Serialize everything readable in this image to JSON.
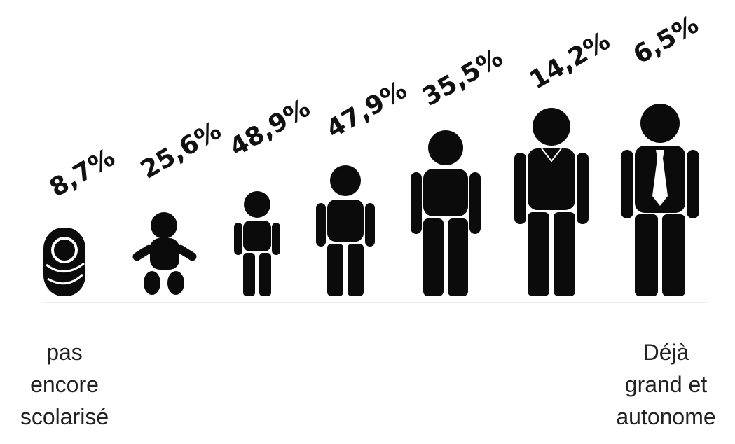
{
  "chart_data": {
    "type": "bar",
    "categories": [
      "pas encore scolarisé",
      "",
      "",
      "",
      "",
      "",
      "Déjà grand et autonome"
    ],
    "values": [
      8.7,
      25.6,
      48.9,
      47.9,
      35.5,
      14.2,
      6.5
    ],
    "value_labels": [
      "8,7%",
      "25,6%",
      "48,9%",
      "47,9%",
      "35,5%",
      "14,2%",
      "6,5%"
    ],
    "figures": [
      "swaddled-baby",
      "baby",
      "small-child",
      "child",
      "teenager",
      "young-adult",
      "adult-with-tie"
    ],
    "unit": "%",
    "title": "",
    "xlabel": "",
    "ylabel": ""
  },
  "labels": {
    "left_lines": [
      "pas",
      "encore",
      "scolarisé"
    ],
    "right_lines": [
      "Déjà",
      "grand et",
      "autonome"
    ]
  },
  "colors": {
    "figure": "#0b0b0b",
    "text": "#111111",
    "baseline": "#eeeeee"
  }
}
